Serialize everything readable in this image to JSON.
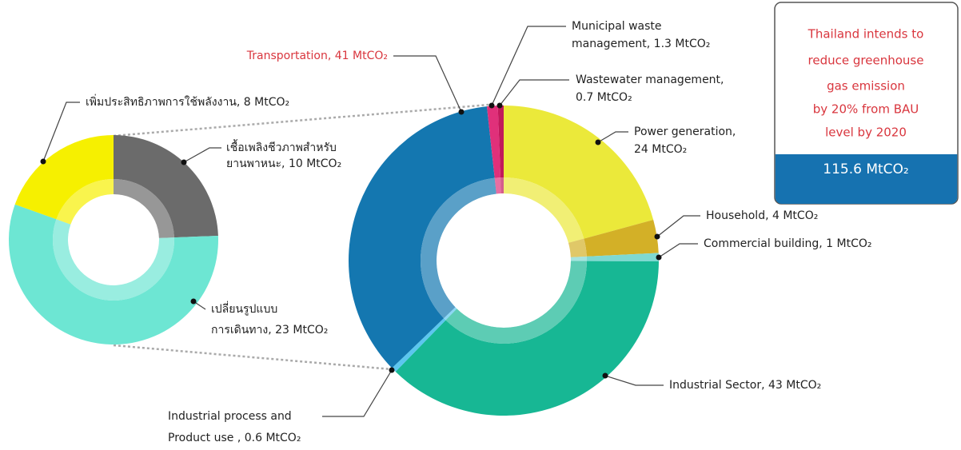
{
  "chart_data": [
    {
      "type": "donut",
      "values": [
        24,
        4,
        1,
        43,
        0.6,
        41,
        1.3,
        0.7
      ],
      "colors": [
        "#ebe93a",
        "#d3b027",
        "#7fd9d1",
        "#17b794",
        "#5cc6ef",
        "#1477b0",
        "#e0307a",
        "#c2185b"
      ],
      "value_labels": [
        [
          "Power generation,",
          "24 MtCO₂"
        ],
        [
          "Household, 4 MtCO₂"
        ],
        [
          "Commercial building, 1 MtCO₂"
        ],
        [
          "Industrial Sector, 43 MtCO₂"
        ],
        [
          "Industrial process and",
          "Product use , 0.6 MtCO₂"
        ],
        [
          "Transportation, 41 MtCO₂"
        ],
        [
          "Municipal waste",
          "management, 1.3 MtCO₂"
        ],
        [
          "Wastewater management,",
          "0.7 MtCO₂"
        ]
      ],
      "label_colors": [
        "#222",
        "#222",
        "#222",
        "#222",
        "#222",
        "#d9363e",
        "#222",
        "#222"
      ]
    },
    {
      "type": "donut",
      "values": [
        10,
        23,
        8
      ],
      "colors": [
        "#6b6b6b",
        "#6de6d3",
        "#f6f000"
      ],
      "value_labels": [
        [
          "เชื้อเพลิงชีวภาพสำหรับ",
          "ยานพาหนะ, 10 MtCO₂"
        ],
        [
          "เปลี่ยนรูปแบบ",
          "การเดินทาง, 23 MtCO₂"
        ],
        [
          "เพิ่มประสิทธิภาพการใช้พลังงาน, 8 MtCO₂"
        ]
      ],
      "label_colors": [
        "#222",
        "#222",
        "#222"
      ]
    }
  ],
  "callout": {
    "lines": [
      "Thailand intends to",
      "reduce greenhouse",
      "gas emission",
      "by 20% from BAU",
      "level by 2020"
    ],
    "total": "115.6 MtCO₂"
  }
}
